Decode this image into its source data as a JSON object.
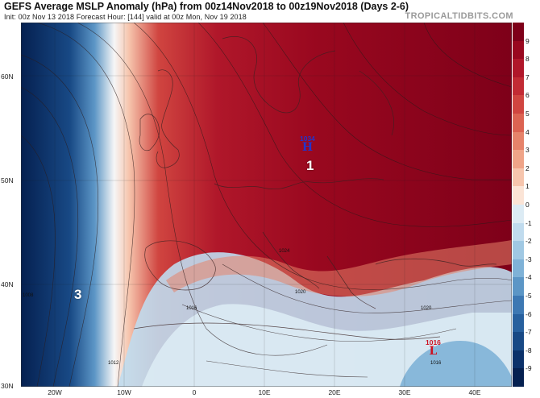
{
  "header": {
    "title": "GEFS Average MSLP Anomaly (hPa) from 00z14Nov2018 to 00z19Nov2018 (Days 2-6)",
    "subtitle": "Init: 00z Nov 13 2018   Forecast Hour: [144]   valid at 00z Mon, Nov 19 2018",
    "brand": "TROPICALTIDBITS.COM"
  },
  "axes": {
    "lat_labels": [
      "60N",
      "50N",
      "40N",
      "30N"
    ],
    "lon_labels": [
      "20W",
      "10W",
      "0",
      "10E",
      "20E",
      "30E",
      "40E"
    ]
  },
  "colorbar": {
    "ticks": [
      "9",
      "8",
      "7",
      "6",
      "5",
      "4",
      "3",
      "2",
      "1",
      "0",
      "-1",
      "-2",
      "-3",
      "-4",
      "-5",
      "-6",
      "-7",
      "-8",
      "-9"
    ],
    "colors": [
      "#7e0019",
      "#99081f",
      "#b0172a",
      "#c22b34",
      "#d04540",
      "#dc6352",
      "#e6836a",
      "#efa488",
      "#f6c5ad",
      "#fbe4d6",
      "#dcebf4",
      "#c0dbee",
      "#a0c8e3",
      "#7fb2d7",
      "#5c96c6",
      "#3d78b3",
      "#27609e",
      "#184985",
      "#0b316a",
      "#052050"
    ]
  },
  "map": {
    "region_labels": [
      {
        "text": "1"
      },
      {
        "text": "3"
      }
    ],
    "pressure_centers": [
      {
        "value": "1034",
        "letter": "H",
        "color": "#2233cc"
      },
      {
        "value": "1016",
        "letter": "L",
        "color": "#cc1122"
      }
    ],
    "isobar_labels": [
      "1016",
      "1020",
      "1024",
      "1012",
      "1020",
      "1016",
      "1008"
    ]
  }
}
